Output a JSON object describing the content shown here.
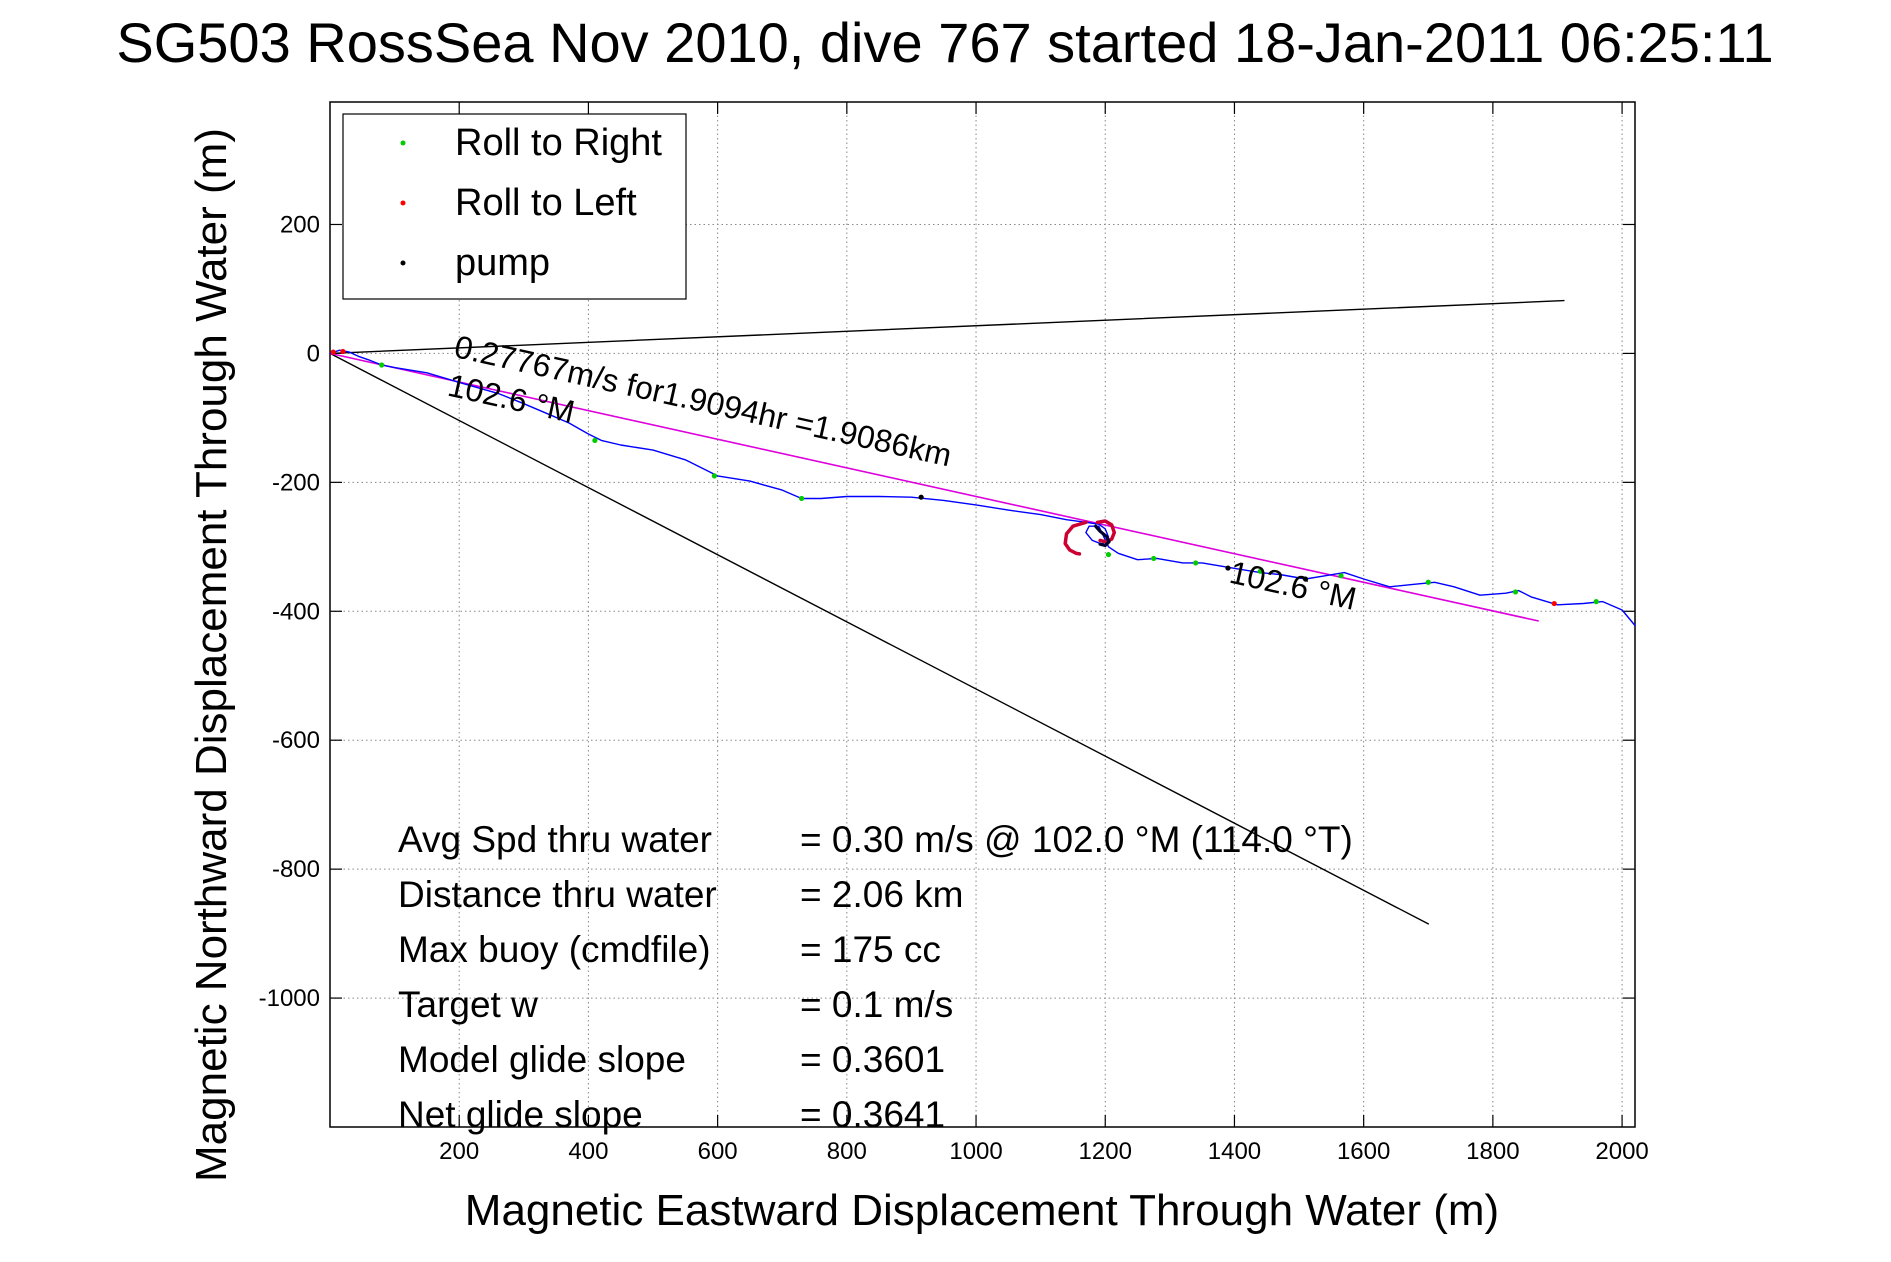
{
  "chart_data": {
    "type": "line",
    "title": "SG503 RossSea Nov 2010, dive 767 started 18-Jan-2011 06:25:11",
    "xlabel": "Magnetic Eastward Displacement Through Water (m)",
    "ylabel": "Magnetic Northward Displacement Through Water (m)",
    "xlim": [
      0,
      2020
    ],
    "ylim": [
      -1200,
      390
    ],
    "x_ticks": [
      200,
      400,
      600,
      800,
      1000,
      1200,
      1400,
      1600,
      1800,
      2000
    ],
    "y_ticks": [
      200,
      0,
      -200,
      -400,
      -600,
      -800,
      -1000
    ],
    "grid": true,
    "legend_position": "top-left",
    "legend": [
      {
        "label": "Roll to Right",
        "color": "#00cc00"
      },
      {
        "label": "Roll to Left",
        "color": "#ff0000"
      },
      {
        "label": "pump",
        "color": "#000000"
      }
    ],
    "series": [
      {
        "style": "reference-line",
        "color": "#000000",
        "points": [
          [
            0,
            0
          ],
          [
            1910,
            82
          ]
        ]
      },
      {
        "style": "reference-line",
        "color": "#000000",
        "points": [
          [
            0,
            0
          ],
          [
            1700,
            -885
          ]
        ]
      },
      {
        "style": "fit-line",
        "color": "#dd00dd",
        "points": [
          [
            0,
            0
          ],
          [
            1870,
            -415
          ]
        ]
      },
      {
        "style": "track",
        "color": "#0000ff",
        "points": [
          [
            0,
            0
          ],
          [
            15,
            5
          ],
          [
            30,
            2
          ],
          [
            45,
            -5
          ],
          [
            60,
            -10
          ],
          [
            80,
            -18
          ],
          [
            100,
            -22
          ],
          [
            150,
            -30
          ],
          [
            200,
            -45
          ],
          [
            260,
            -62
          ],
          [
            300,
            -78
          ],
          [
            340,
            -95
          ],
          [
            370,
            -108
          ],
          [
            400,
            -125
          ],
          [
            420,
            -135
          ],
          [
            450,
            -142
          ],
          [
            500,
            -150
          ],
          [
            550,
            -165
          ],
          [
            600,
            -190
          ],
          [
            650,
            -198
          ],
          [
            700,
            -212
          ],
          [
            730,
            -225
          ],
          [
            760,
            -225
          ],
          [
            800,
            -222
          ],
          [
            850,
            -222
          ],
          [
            900,
            -223
          ],
          [
            950,
            -228
          ],
          [
            1000,
            -235
          ],
          [
            1050,
            -243
          ],
          [
            1100,
            -250
          ],
          [
            1140,
            -258
          ],
          [
            1170,
            -262
          ],
          [
            1190,
            -265
          ],
          [
            1200,
            -272
          ],
          [
            1205,
            -285
          ],
          [
            1195,
            -296
          ],
          [
            1180,
            -290
          ],
          [
            1170,
            -278
          ],
          [
            1175,
            -268
          ],
          [
            1190,
            -268
          ],
          [
            1205,
            -300
          ],
          [
            1220,
            -310
          ],
          [
            1250,
            -320
          ],
          [
            1280,
            -318
          ],
          [
            1320,
            -325
          ],
          [
            1350,
            -325
          ],
          [
            1380,
            -330
          ],
          [
            1410,
            -335
          ],
          [
            1440,
            -340
          ],
          [
            1470,
            -343
          ],
          [
            1510,
            -350
          ],
          [
            1540,
            -345
          ],
          [
            1570,
            -340
          ],
          [
            1600,
            -350
          ],
          [
            1640,
            -362
          ],
          [
            1680,
            -358
          ],
          [
            1710,
            -355
          ],
          [
            1740,
            -362
          ],
          [
            1780,
            -375
          ],
          [
            1820,
            -372
          ],
          [
            1840,
            -368
          ],
          [
            1860,
            -378
          ],
          [
            1900,
            -390
          ],
          [
            1940,
            -388
          ],
          [
            1970,
            -385
          ],
          [
            2000,
            -398
          ],
          [
            2020,
            -422
          ]
        ]
      },
      {
        "style": "roll-left-loop",
        "color": "#cc0033",
        "points": [
          [
            1170,
            -262
          ],
          [
            1150,
            -268
          ],
          [
            1140,
            -280
          ],
          [
            1138,
            -295
          ],
          [
            1145,
            -305
          ],
          [
            1155,
            -310
          ],
          [
            1160,
            -311
          ]
        ]
      },
      {
        "style": "roll-left-loop",
        "color": "#cc0033",
        "points": [
          [
            1188,
            -262
          ],
          [
            1200,
            -260
          ],
          [
            1210,
            -266
          ],
          [
            1214,
            -278
          ],
          [
            1210,
            -288
          ],
          [
            1200,
            -292
          ],
          [
            1192,
            -290
          ]
        ]
      },
      {
        "style": "pump-segment",
        "color": "#000033",
        "points": [
          [
            1185,
            -268
          ],
          [
            1192,
            -276
          ],
          [
            1202,
            -284
          ],
          [
            1206,
            -292
          ],
          [
            1200,
            -298
          ],
          [
            1192,
            -296
          ]
        ]
      }
    ],
    "markers": {
      "roll_right": [
        [
          80,
          -18
        ],
        [
          410,
          -135
        ],
        [
          595,
          -190
        ],
        [
          730,
          -225
        ],
        [
          1205,
          -312
        ],
        [
          1275,
          -318
        ],
        [
          1340,
          -325
        ],
        [
          1440,
          -338
        ],
        [
          1565,
          -345
        ],
        [
          1700,
          -355
        ],
        [
          1835,
          -370
        ],
        [
          1960,
          -385
        ]
      ],
      "roll_left": [
        [
          5,
          2
        ],
        [
          20,
          3
        ],
        [
          1895,
          -388
        ]
      ],
      "pump": [
        [
          915,
          -223
        ],
        [
          1390,
          -333
        ],
        [
          1510,
          -350
        ]
      ]
    },
    "annotations": [
      {
        "text": "0.27767m/s for1.9094hr =1.9086km",
        "x": 190,
        "y": -5,
        "angle_deg": 12.5
      },
      {
        "text": "102.6 °M",
        "x": 180,
        "y": -65,
        "angle_deg": 12.5
      },
      {
        "text": "102.6 °M",
        "x": 1390,
        "y": -355,
        "angle_deg": 12.5
      }
    ],
    "stats": [
      {
        "label": "Avg Spd thru water",
        "value": "=  0.30 m/s @ 102.0 °M (114.0 °T)"
      },
      {
        "label": "Distance thru water",
        "value": "=  2.06 km"
      },
      {
        "label": "Max buoy (cmdfile)",
        "value": "= 175 cc"
      },
      {
        "label": "Target w",
        "value": "= 0.1 m/s"
      },
      {
        "label": "Model glide slope",
        "value": "= 0.3601"
      },
      {
        "label": "Net glide slope",
        "value": "= 0.3641"
      }
    ]
  }
}
